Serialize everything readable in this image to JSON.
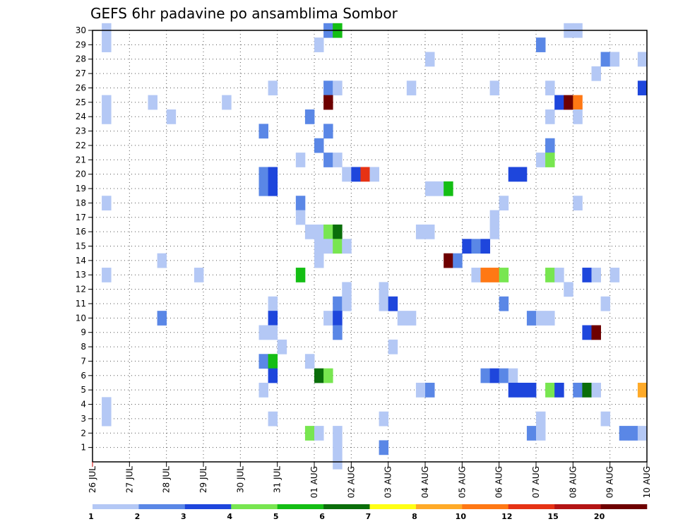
{
  "chart_data": {
    "type": "heatmap",
    "title": "GEFS 6hr padavine po ansamblima Sombor",
    "xlabel": "",
    "ylabel": "",
    "x_ticks": [
      "26 JUL",
      "27 JUL",
      "28 JUL",
      "29 JUL",
      "30 JUL",
      "31 JUL",
      "01 AUG",
      "02 AUG",
      "03 AUG",
      "04 AUG",
      "05 AUG",
      "06 AUG",
      "07 AUG",
      "08 AUG",
      "09 AUG",
      "10 AUG"
    ],
    "x_range": [
      "26 JUL 00z",
      "10 AUG 00z"
    ],
    "y_ticks": [
      "1",
      "2",
      "3",
      "4",
      "5",
      "6",
      "7",
      "8",
      "9",
      "10",
      "11",
      "12",
      "13",
      "14",
      "15",
      "16",
      "17",
      "18",
      "19",
      "20",
      "21",
      "22",
      "23",
      "24",
      "25",
      "26",
      "27",
      "28",
      "29",
      "30"
    ],
    "ylim": [
      0,
      30
    ],
    "grid": true,
    "colorbar": {
      "labels": [
        "1",
        "2",
        "3",
        "4",
        "5",
        "6",
        "7",
        "8",
        "10",
        "12",
        "15",
        "20"
      ],
      "bins": [
        [
          1,
          2
        ],
        [
          2,
          3
        ],
        [
          3,
          4
        ],
        [
          4,
          5
        ],
        [
          5,
          6
        ],
        [
          6,
          7
        ],
        [
          7,
          8
        ],
        [
          8,
          10
        ],
        [
          10,
          12
        ],
        [
          12,
          15
        ],
        [
          15,
          20
        ],
        [
          20,
          40
        ]
      ],
      "colors": [
        "#b4c8f5",
        "#5a87e6",
        "#1e46dc",
        "#78e650",
        "#14be14",
        "#0a6e0a",
        "#ffff14",
        "#ffaa28",
        "#ff7814",
        "#e63214",
        "#b41414",
        "#6e0000"
      ]
    },
    "cell_step_hours": 6,
    "cells_note": "each cell: [member, 6h-step index from 26 JUL 00z, value mm]",
    "cells": [
      [
        30,
        1,
        1.5
      ],
      [
        29,
        1,
        1.5
      ],
      [
        25,
        1,
        1.5
      ],
      [
        24,
        1,
        1.5
      ],
      [
        18,
        1,
        1.5
      ],
      [
        13,
        1,
        1.5
      ],
      [
        4,
        1,
        1.5
      ],
      [
        3,
        1,
        1.5
      ],
      [
        25,
        6,
        1.5
      ],
      [
        24,
        8,
        1.5
      ],
      [
        14,
        7,
        1.5
      ],
      [
        10,
        7,
        2.5
      ],
      [
        13,
        11,
        1.5
      ],
      [
        25,
        14,
        1.5
      ],
      [
        26,
        19,
        1.5
      ],
      [
        23,
        18,
        2.5
      ],
      [
        20,
        18,
        2.5
      ],
      [
        20,
        19,
        3.5
      ],
      [
        19,
        18,
        2.5
      ],
      [
        19,
        19,
        3.5
      ],
      [
        11,
        19,
        1.5
      ],
      [
        10,
        19,
        3.5
      ],
      [
        9,
        18,
        1.5
      ],
      [
        9,
        19,
        1.5
      ],
      [
        8,
        20,
        1.5
      ],
      [
        7,
        18,
        2.5
      ],
      [
        7,
        19,
        5.5
      ],
      [
        6,
        19,
        3.5
      ],
      [
        5,
        18,
        1.5
      ],
      [
        3,
        19,
        1.5
      ],
      [
        21,
        22,
        1.5
      ],
      [
        18,
        22,
        2.5
      ],
      [
        17,
        22,
        1.5
      ],
      [
        16,
        23,
        1.5
      ],
      [
        16,
        24,
        1.5
      ],
      [
        15,
        24,
        1.5
      ],
      [
        14,
        24,
        1.5
      ],
      [
        13,
        22,
        5.5
      ],
      [
        7,
        23,
        1.5
      ],
      [
        2,
        23,
        4.5
      ],
      [
        2,
        24,
        1.5
      ],
      [
        24,
        23,
        2.5
      ],
      [
        30,
        25,
        2.5
      ],
      [
        30,
        26,
        5.5
      ],
      [
        29,
        24,
        1.5
      ],
      [
        26,
        25,
        2.5
      ],
      [
        26,
        26,
        1.5
      ],
      [
        25,
        25,
        25
      ],
      [
        23,
        25,
        2.5
      ],
      [
        22,
        24,
        2.5
      ],
      [
        21,
        25,
        2.5
      ],
      [
        21,
        26,
        1.5
      ],
      [
        20,
        27,
        1.5
      ],
      [
        20,
        28,
        3.5
      ],
      [
        20,
        29,
        12.5
      ],
      [
        20,
        30,
        1.5
      ],
      [
        16,
        25,
        4.5
      ],
      [
        16,
        26,
        6.5
      ],
      [
        15,
        25,
        1.5
      ],
      [
        15,
        26,
        4.5
      ],
      [
        15,
        27,
        1.5
      ],
      [
        12,
        27,
        1.5
      ],
      [
        11,
        26,
        2.5
      ],
      [
        11,
        27,
        1.5
      ],
      [
        10,
        25,
        1.5
      ],
      [
        10,
        26,
        3.5
      ],
      [
        9,
        26,
        2.5
      ],
      [
        6,
        24,
        6.5
      ],
      [
        6,
        25,
        4.5
      ],
      [
        2,
        26,
        1.5
      ],
      [
        1,
        26,
        1.5
      ],
      [
        0,
        26,
        1.5
      ],
      [
        12,
        31,
        1.5
      ],
      [
        11,
        31,
        1.5
      ],
      [
        11,
        32,
        3.5
      ],
      [
        10,
        33,
        1.5
      ],
      [
        8,
        32,
        1.5
      ],
      [
        3,
        31,
        1.5
      ],
      [
        1,
        31,
        2.5
      ],
      [
        28,
        36,
        1.5
      ],
      [
        26,
        34,
        1.5
      ],
      [
        19,
        36,
        1.5
      ],
      [
        19,
        37,
        1.5
      ],
      [
        19,
        38,
        5.5
      ],
      [
        16,
        35,
        1.5
      ],
      [
        16,
        36,
        1.5
      ],
      [
        14,
        38,
        25
      ],
      [
        14,
        39,
        2.5
      ],
      [
        10,
        34,
        1.5
      ],
      [
        5,
        35,
        1.5
      ],
      [
        5,
        36,
        2.5
      ],
      [
        15,
        40,
        3.5
      ],
      [
        15,
        41,
        2.5
      ],
      [
        15,
        42,
        3.5
      ],
      [
        16,
        43,
        1.5
      ],
      [
        17,
        43,
        1.5
      ],
      [
        18,
        44,
        1.5
      ],
      [
        26,
        43,
        1.5
      ],
      [
        13,
        41,
        1.5
      ],
      [
        13,
        42,
        11
      ],
      [
        13,
        43,
        11
      ],
      [
        13,
        44,
        4.5
      ],
      [
        11,
        44,
        2.5
      ],
      [
        6,
        42,
        2.5
      ],
      [
        6,
        43,
        3.5
      ],
      [
        6,
        44,
        2.5
      ],
      [
        6,
        45,
        1.5
      ],
      [
        5,
        45,
        3.5
      ],
      [
        5,
        46,
        3.5
      ],
      [
        5,
        47,
        3.5
      ],
      [
        20,
        45,
        3.5
      ],
      [
        20,
        46,
        3.5
      ],
      [
        29,
        48,
        2.5
      ],
      [
        24,
        49,
        1.5
      ],
      [
        22,
        49,
        2.5
      ],
      [
        21,
        48,
        1.5
      ],
      [
        21,
        49,
        4.5
      ],
      [
        26,
        49,
        1.5
      ],
      [
        13,
        49,
        4.5
      ],
      [
        13,
        50,
        1.5
      ],
      [
        12,
        51,
        1.5
      ],
      [
        10,
        47,
        2.5
      ],
      [
        10,
        48,
        1.5
      ],
      [
        10,
        49,
        1.5
      ],
      [
        3,
        48,
        1.5
      ],
      [
        2,
        47,
        2.5
      ],
      [
        2,
        48,
        1.5
      ],
      [
        5,
        49,
        4.5
      ],
      [
        5,
        50,
        3.5
      ],
      [
        25,
        50,
        3.5
      ],
      [
        25,
        51,
        25
      ],
      [
        25,
        52,
        11
      ],
      [
        18,
        52,
        1.5
      ],
      [
        30,
        51,
        1.5
      ],
      [
        30,
        52,
        1.5
      ],
      [
        24,
        52,
        1.5
      ],
      [
        27,
        54,
        1.5
      ],
      [
        28,
        55,
        2.5
      ],
      [
        28,
        56,
        1.5
      ],
      [
        28,
        59,
        1.5
      ],
      [
        26,
        59,
        3.5
      ],
      [
        13,
        53,
        3.5
      ],
      [
        13,
        54,
        1.5
      ],
      [
        13,
        56,
        1.5
      ],
      [
        11,
        55,
        1.5
      ],
      [
        9,
        53,
        3.5
      ],
      [
        9,
        54,
        25
      ],
      [
        5,
        52,
        2.5
      ],
      [
        5,
        53,
        6.5
      ],
      [
        5,
        54,
        1.5
      ],
      [
        5,
        59,
        8.5
      ],
      [
        3,
        55,
        1.5
      ],
      [
        2,
        57,
        2.5
      ],
      [
        2,
        58,
        2.5
      ],
      [
        2,
        59,
        1.5
      ]
    ]
  }
}
